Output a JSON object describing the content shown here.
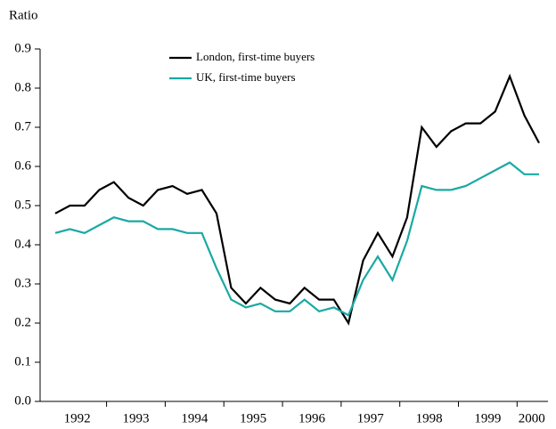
{
  "chart_data": {
    "type": "line",
    "y_label": "Ratio",
    "categories": [
      "1992",
      null,
      null,
      null,
      "1993",
      null,
      null,
      null,
      "1994",
      null,
      null,
      null,
      "1995",
      null,
      null,
      null,
      "1996",
      null,
      null,
      null,
      "1997",
      null,
      null,
      null,
      "1998",
      null,
      null,
      null,
      "1999",
      null,
      null,
      null,
      "2000",
      null
    ],
    "series": [
      {
        "name": "London, first-time buyers",
        "color": "#000000",
        "values": [
          0.48,
          0.5,
          0.5,
          0.54,
          0.56,
          0.52,
          0.5,
          0.54,
          0.55,
          0.53,
          0.54,
          0.48,
          0.29,
          0.25,
          0.29,
          0.26,
          0.25,
          0.29,
          0.26,
          0.26,
          0.2,
          0.36,
          0.43,
          0.37,
          0.47,
          0.7,
          0.65,
          0.69,
          0.71,
          0.71,
          0.74,
          0.83,
          0.73,
          0.66
        ]
      },
      {
        "name": "UK, first-time buyers",
        "color": "#1aa9a3",
        "values": [
          0.43,
          0.44,
          0.43,
          0.45,
          0.47,
          0.46,
          0.46,
          0.44,
          0.44,
          0.43,
          0.43,
          0.34,
          0.26,
          0.24,
          0.25,
          0.23,
          0.23,
          0.26,
          0.23,
          0.24,
          0.22,
          0.31,
          0.37,
          0.31,
          0.41,
          0.55,
          0.54,
          0.54,
          0.55,
          0.57,
          0.59,
          0.61,
          0.58,
          0.58
        ]
      }
    ],
    "ylim": [
      0,
      0.9
    ],
    "yticks": [
      {
        "value": 0,
        "label": "0.0"
      },
      0.1,
      0.2,
      0.3,
      0.4,
      0.5,
      0.6,
      0.7,
      0.8,
      0.9
    ]
  }
}
